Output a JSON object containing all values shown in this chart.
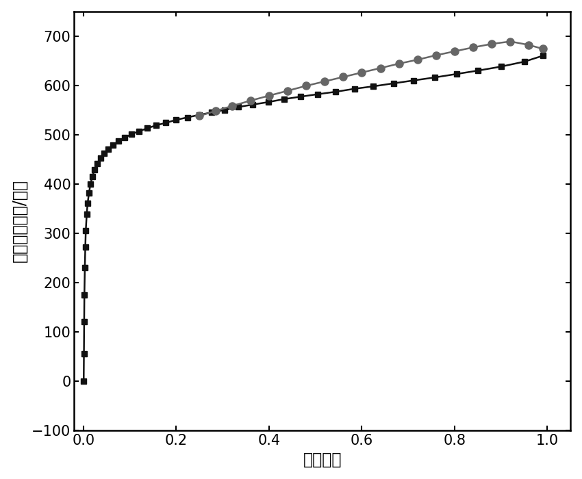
{
  "title": "",
  "xlabel": "相对压力",
  "ylabel": "体积（立方米/克）",
  "xlim": [
    -0.02,
    1.05
  ],
  "ylim": [
    -100,
    750
  ],
  "yticks": [
    -100,
    0,
    100,
    200,
    300,
    400,
    500,
    600,
    700
  ],
  "xticks": [
    0.0,
    0.2,
    0.4,
    0.6,
    0.8,
    1.0
  ],
  "adsorption_x": [
    0.0005,
    0.001,
    0.0015,
    0.002,
    0.003,
    0.004,
    0.005,
    0.007,
    0.009,
    0.012,
    0.015,
    0.019,
    0.024,
    0.03,
    0.037,
    0.045,
    0.054,
    0.064,
    0.076,
    0.089,
    0.104,
    0.12,
    0.138,
    0.157,
    0.178,
    0.2,
    0.224,
    0.249,
    0.276,
    0.304,
    0.334,
    0.365,
    0.398,
    0.432,
    0.468,
    0.505,
    0.544,
    0.584,
    0.625,
    0.668,
    0.712,
    0.757,
    0.804,
    0.851,
    0.9,
    0.95,
    0.99
  ],
  "adsorption_y": [
    0,
    55,
    120,
    175,
    230,
    272,
    305,
    338,
    361,
    382,
    399,
    415,
    429,
    441,
    452,
    462,
    471,
    479,
    487,
    494,
    501,
    507,
    513,
    519,
    524,
    530,
    535,
    540,
    545,
    550,
    556,
    561,
    566,
    572,
    577,
    582,
    587,
    593,
    598,
    604,
    610,
    616,
    623,
    630,
    638,
    648,
    660
  ],
  "desorption_x": [
    0.25,
    0.285,
    0.32,
    0.36,
    0.4,
    0.44,
    0.48,
    0.52,
    0.56,
    0.6,
    0.64,
    0.68,
    0.72,
    0.76,
    0.8,
    0.84,
    0.88,
    0.92,
    0.96,
    0.99
  ],
  "desorption_y": [
    538,
    548,
    558,
    569,
    579,
    589,
    599,
    608,
    617,
    626,
    635,
    644,
    652,
    661,
    669,
    677,
    684,
    689,
    682,
    674
  ],
  "line_color_ads": "#111111",
  "line_color_des": "#666666",
  "marker_ads": "s",
  "marker_des": "o",
  "marker_size_ads": 6,
  "marker_size_des": 8,
  "linewidth": 1.8,
  "bg_color": "#ffffff",
  "tick_fontsize": 15,
  "label_fontsize": 17
}
